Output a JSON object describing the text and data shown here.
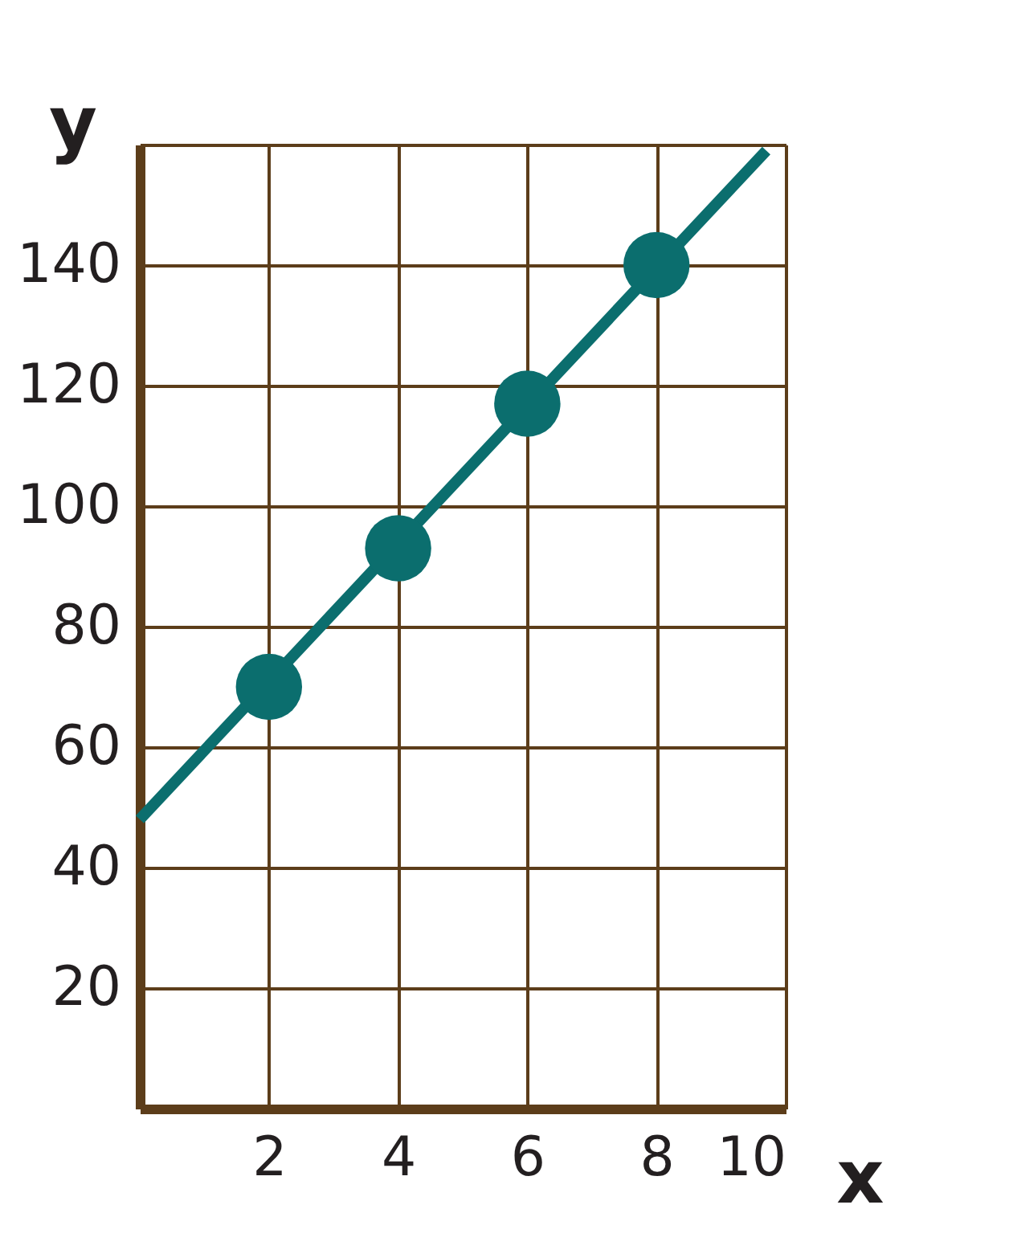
{
  "chart_data": {
    "type": "scatter",
    "xlabel": "x",
    "ylabel": "y",
    "series": [
      {
        "type": "line",
        "color": "#0b6e6e",
        "x": [
          0,
          9.7
        ],
        "values": [
          48,
          159
        ],
        "marker": "none"
      },
      {
        "color": "#0b6e6e",
        "x": [
          2,
          4,
          6,
          8
        ],
        "values": [
          70,
          93,
          117,
          140
        ],
        "marker": "circle"
      }
    ],
    "xlim": [
      0,
      10
    ],
    "xticks": [
      2,
      4,
      6,
      8,
      10
    ],
    "ylim": [
      0,
      160
    ],
    "yticks": [
      20,
      40,
      60,
      80,
      100,
      120,
      140,
      {
        "value": 160,
        "label": null
      }
    ],
    "grid": true,
    "legend": false
  }
}
